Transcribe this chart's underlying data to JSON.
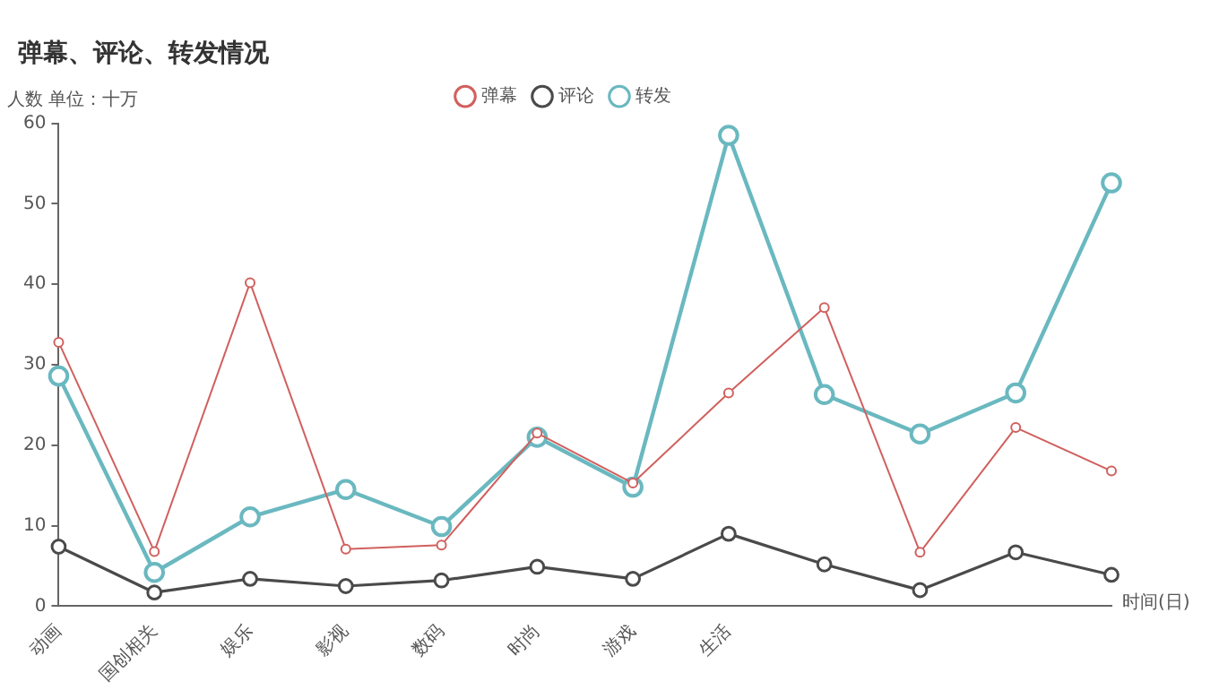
{
  "chart_data": {
    "type": "line",
    "title": "弹幕、评论、转发情况",
    "ylabel": "人数 单位：十万",
    "xlabel": "时间(日)",
    "categories": [
      "动画",
      "国创相关",
      "娱乐",
      "影视",
      "数码",
      "时尚",
      "游戏",
      "生活",
      null,
      null,
      null,
      null
    ],
    "series": [
      {
        "name": "弹幕",
        "color": "#d0605e",
        "values": [
          32.8,
          6.8,
          40.2,
          7.1,
          7.6,
          21.5,
          15.3,
          26.5,
          37.1,
          6.7,
          22.2,
          16.8
        ]
      },
      {
        "name": "评论",
        "color": "#4a4a4a",
        "values": [
          7.4,
          1.7,
          3.4,
          2.5,
          3.2,
          4.9,
          3.4,
          9.0,
          5.2,
          2.0,
          6.7,
          3.9
        ]
      },
      {
        "name": "转发",
        "color": "#6ab8c0",
        "values": [
          28.6,
          4.2,
          11.1,
          14.5,
          9.9,
          21.0,
          14.8,
          58.5,
          26.3,
          21.4,
          26.5,
          52.6
        ]
      }
    ],
    "ylim": [
      0,
      60
    ],
    "yticks": [
      0,
      10,
      20,
      30,
      40,
      50,
      60
    ],
    "grid": false,
    "legend": "top",
    "marker": "circle",
    "line_style": "solid"
  }
}
